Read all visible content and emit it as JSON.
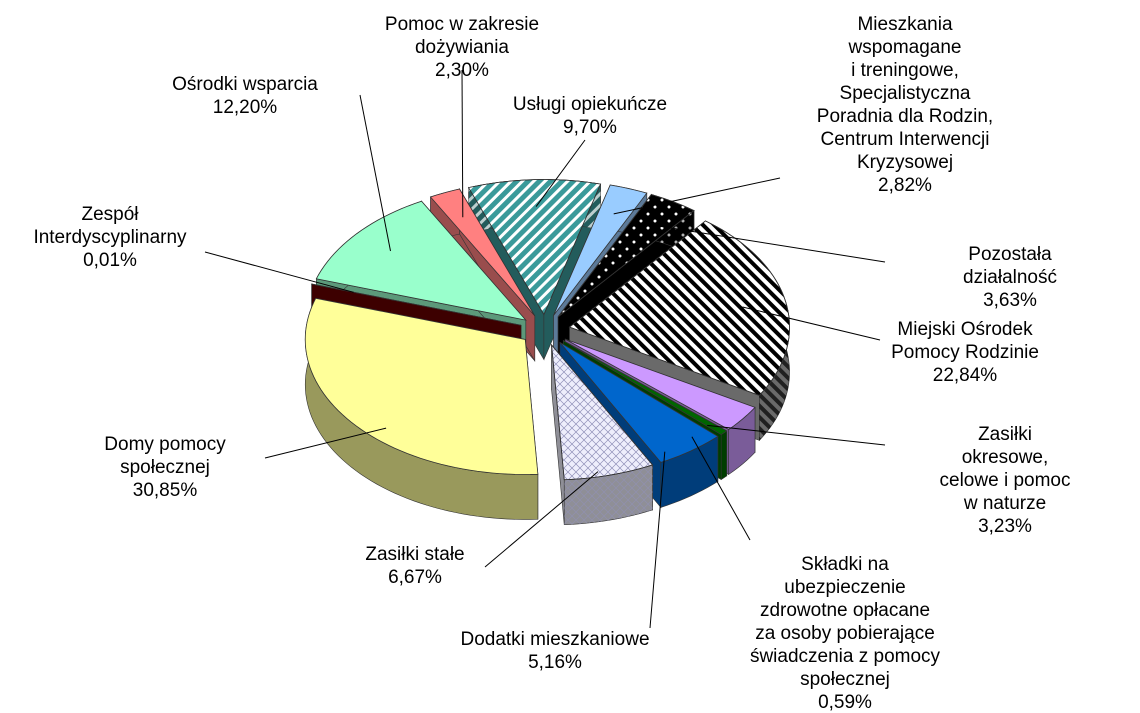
{
  "chart_data": {
    "type": "pie3d",
    "categories": [
      "Usługi opiekuńcze",
      "Mieszkania\nwspomagane\ni treningowe,\nSpecjalistyczna\nPoradnia dla Rodzin,\nCentrum Interwencji\nKryzysowej",
      "Pozostała działalność",
      "Miejski Ośrodek\nPomocy Rodzinie",
      "Zasiłki okresowe,\ncelowe i pomoc\nw naturze",
      "Składki na\nubezpieczenie\nzdrowotne opłacane\nza osoby pobierające\nświadczenia z pomocy\nspołecznej",
      "Dodatki mieszkaniowe",
      "Zasiłki stałe",
      "Domy pomocy\nspołecznej",
      "Zespół\nInterdyscyplinarny",
      "Ośrodki wsparcia",
      "Pomoc w zakresie\ndożywiania"
    ],
    "values": [
      9.7,
      2.82,
      3.63,
      22.84,
      3.23,
      0.59,
      5.16,
      6.67,
      30.85,
      0.01,
      12.2,
      2.3
    ],
    "value_labels": [
      "9,70%",
      "2,82%",
      "3,63%",
      "22,84%",
      "3,23%",
      "0,59%",
      "5,16%",
      "6,67%",
      "30,85%",
      "0,01%",
      "12,20%",
      "2,30%"
    ],
    "colors": [
      "#3a9a9a",
      "#99ccff",
      "#000000",
      "#ffffff",
      "#cc99ff",
      "#006600",
      "#0066cc",
      "#eeeefc",
      "#ffff99",
      "#660000",
      "#99ffcc",
      "#ff8080"
    ],
    "patterns": [
      "diagonal",
      "solid",
      "dots",
      "stripes",
      "solid",
      "solid",
      "solid",
      "cross",
      "solid",
      "solid",
      "solid",
      "solid"
    ]
  }
}
